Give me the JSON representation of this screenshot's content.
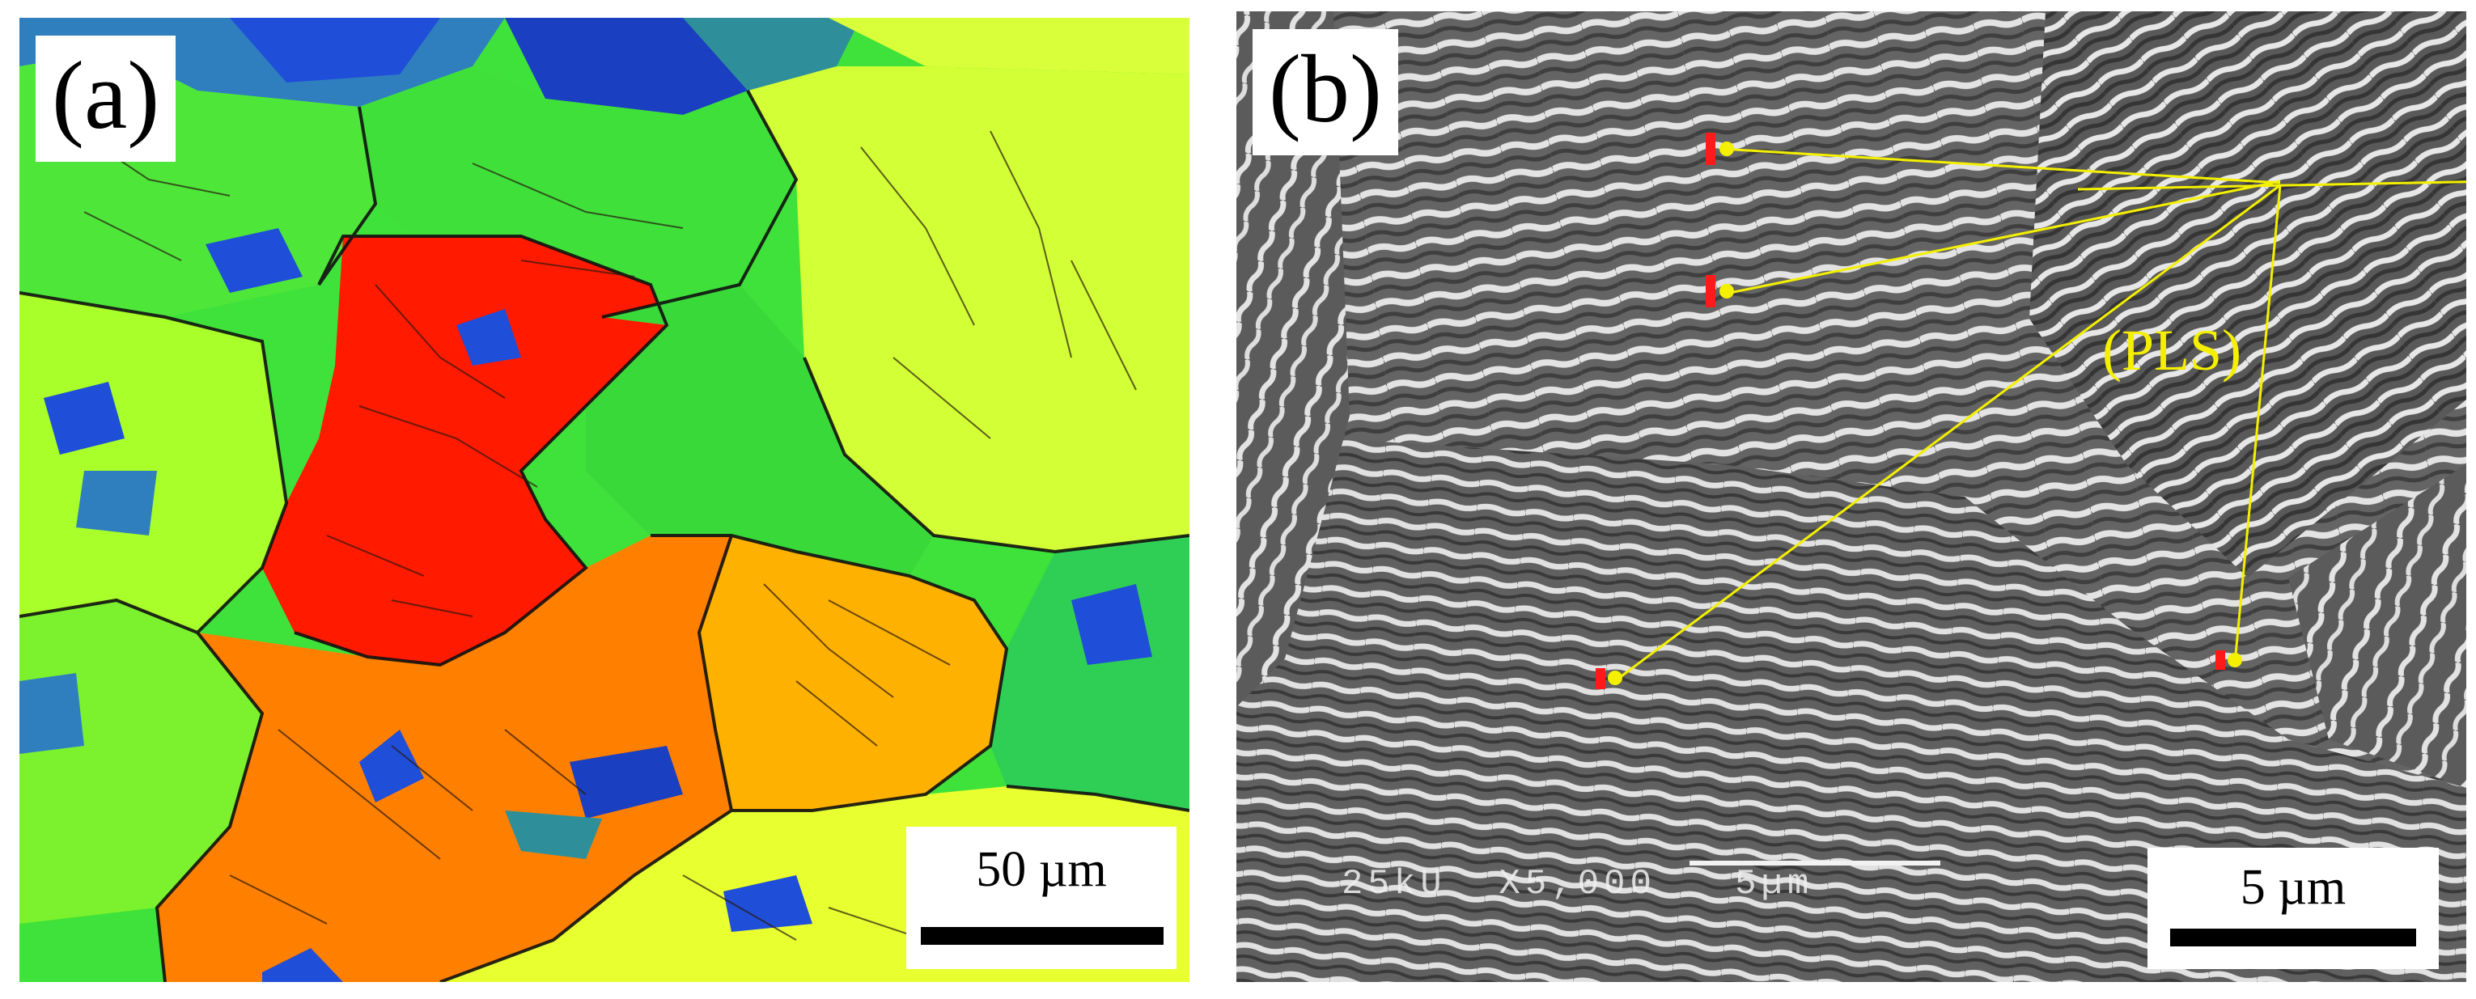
{
  "panel_a": {
    "label": "(a)",
    "scale_bar": {
      "text": "50 µm"
    },
    "palette": [
      "#ff1a00",
      "#ff8000",
      "#ffb400",
      "#d9ff3a",
      "#b4ff1e",
      "#6cff2a",
      "#3ae23a",
      "#2fcf55",
      "#2e8f9a",
      "#2f7fbf",
      "#1f4ed8",
      "#1a2fae"
    ]
  },
  "panel_b": {
    "label": "(b)",
    "annotation": "(PLS)",
    "scale_bar": {
      "text": "5 µm"
    },
    "sem_info": "25kU  X5,000   5µm",
    "annotation_color": "#f4f000",
    "marker_color": "#ff1a1a"
  }
}
